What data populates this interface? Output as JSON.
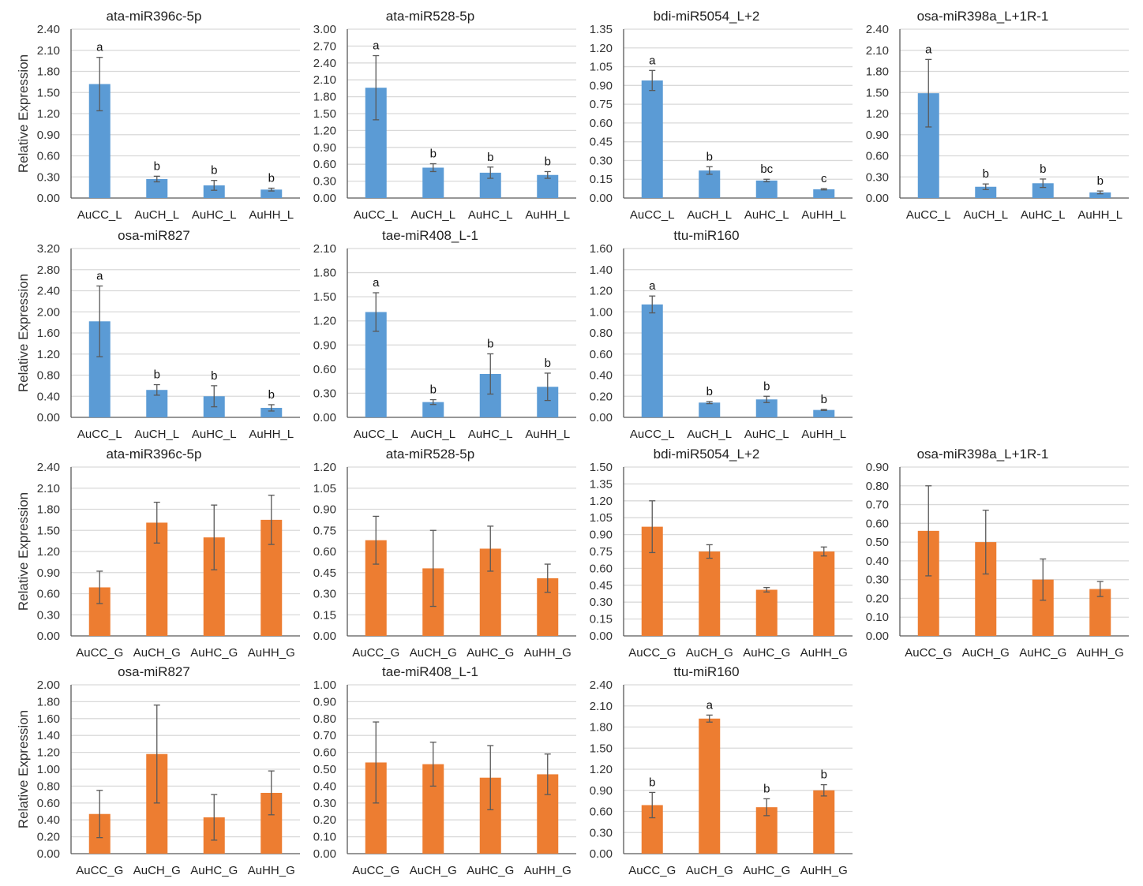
{
  "colors": {
    "leaf": "#5B9BD5",
    "grain": "#ED7D31",
    "grid": "#D9D9D9",
    "axis": "#595959",
    "error": "#595959"
  },
  "chart_data": [
    {
      "type": "bar",
      "title": "ata-miR396c-5p",
      "ylabel": "Relative Expression",
      "categories": [
        "AuCC_L",
        "AuCH_L",
        "AuHC_L",
        "AuHH_L"
      ],
      "values": [
        1.62,
        0.27,
        0.18,
        0.12
      ],
      "errors": [
        0.38,
        0.04,
        0.07,
        0.02
      ],
      "letters": [
        "a",
        "b",
        "b",
        "b"
      ],
      "ylim": [
        0,
        2.4
      ],
      "ystep": 0.3,
      "yticks": [
        "0.00",
        "0.30",
        "0.60",
        "0.90",
        "1.20",
        "1.50",
        "1.80",
        "2.10",
        "2.40"
      ],
      "series_color": "leaf",
      "grid": true
    },
    {
      "type": "bar",
      "title": "ata-miR528-5p",
      "ylabel": "",
      "categories": [
        "AuCC_L",
        "AuCH_L",
        "AuHC_L",
        "AuHH_L"
      ],
      "values": [
        1.96,
        0.54,
        0.45,
        0.41
      ],
      "errors": [
        0.57,
        0.07,
        0.1,
        0.06
      ],
      "letters": [
        "a",
        "b",
        "b",
        "b"
      ],
      "ylim": [
        0,
        3.0
      ],
      "ystep": 0.3,
      "yticks": [
        "0.00",
        "0.30",
        "0.60",
        "0.90",
        "1.20",
        "1.50",
        "1.80",
        "2.10",
        "2.40",
        "2.70",
        "3.00"
      ],
      "series_color": "leaf",
      "grid": true
    },
    {
      "type": "bar",
      "title": "bdi-miR5054_L+2",
      "ylabel": "",
      "categories": [
        "AuCC_L",
        "AuCH_L",
        "AuHC_L",
        "AuHH_L"
      ],
      "values": [
        0.94,
        0.22,
        0.14,
        0.07
      ],
      "errors": [
        0.08,
        0.03,
        0.01,
        0.005
      ],
      "letters": [
        "a",
        "b",
        "bc",
        "c"
      ],
      "ylim": [
        0,
        1.35
      ],
      "ystep": 0.15,
      "yticks": [
        "0.00",
        "0.15",
        "0.30",
        "0.45",
        "0.60",
        "0.75",
        "0.90",
        "1.05",
        "1.20",
        "1.35"
      ],
      "series_color": "leaf",
      "grid": true
    },
    {
      "type": "bar",
      "title": "osa-miR398a_L+1R-1",
      "ylabel": "",
      "categories": [
        "AuCC_L",
        "AuCH_L",
        "AuHC_L",
        "AuHH_L"
      ],
      "values": [
        1.49,
        0.16,
        0.21,
        0.08
      ],
      "errors": [
        0.48,
        0.04,
        0.06,
        0.02
      ],
      "letters": [
        "a",
        "b",
        "b",
        "b"
      ],
      "ylim": [
        0,
        2.4
      ],
      "ystep": 0.3,
      "yticks": [
        "0.00",
        "0.30",
        "0.60",
        "0.90",
        "1.20",
        "1.50",
        "1.80",
        "2.10",
        "2.40"
      ],
      "series_color": "leaf",
      "grid": true
    },
    {
      "type": "bar",
      "title": "osa-miR827",
      "ylabel": "Relative Expression",
      "categories": [
        "AuCC_L",
        "AuCH_L",
        "AuHC_L",
        "AuHH_L"
      ],
      "values": [
        1.82,
        0.52,
        0.4,
        0.18
      ],
      "errors": [
        0.67,
        0.1,
        0.2,
        0.06
      ],
      "letters": [
        "a",
        "b",
        "b",
        "b"
      ],
      "ylim": [
        0,
        3.2
      ],
      "ystep": 0.4,
      "yticks": [
        "0.00",
        "0.40",
        "0.80",
        "1.20",
        "1.60",
        "2.00",
        "2.40",
        "2.80",
        "3.20"
      ],
      "series_color": "leaf",
      "grid": true
    },
    {
      "type": "bar",
      "title": "tae-miR408_L-1",
      "ylabel": "",
      "categories": [
        "AuCC_L",
        "AuCH_L",
        "AuHC_L",
        "AuHH_L"
      ],
      "values": [
        1.31,
        0.19,
        0.54,
        0.38
      ],
      "errors": [
        0.24,
        0.03,
        0.25,
        0.17
      ],
      "letters": [
        "a",
        "b",
        "b",
        "b"
      ],
      "ylim": [
        0,
        2.1
      ],
      "ystep": 0.3,
      "yticks": [
        "0.00",
        "0.30",
        "0.60",
        "0.90",
        "1.20",
        "1.50",
        "1.80",
        "2.10"
      ],
      "series_color": "leaf",
      "grid": true
    },
    {
      "type": "bar",
      "title": "ttu-miR160",
      "ylabel": "",
      "categories": [
        "AuCC_L",
        "AuCH_L",
        "AuHC_L",
        "AuHH_L"
      ],
      "values": [
        1.07,
        0.14,
        0.17,
        0.07
      ],
      "errors": [
        0.08,
        0.01,
        0.03,
        0.005
      ],
      "letters": [
        "a",
        "b",
        "b",
        "b"
      ],
      "ylim": [
        0,
        1.6
      ],
      "ystep": 0.2,
      "yticks": [
        "0.00",
        "0.20",
        "0.40",
        "0.60",
        "0.80",
        "1.00",
        "1.20",
        "1.40",
        "1.60"
      ],
      "series_color": "leaf",
      "grid": true
    },
    {
      "type": "bar",
      "title": "ata-miR396c-5p",
      "ylabel": "Relative Expression",
      "categories": [
        "AuCC_G",
        "AuCH_G",
        "AuHC_G",
        "AuHH_G"
      ],
      "values": [
        0.69,
        1.61,
        1.4,
        1.65
      ],
      "errors": [
        0.23,
        0.29,
        0.46,
        0.35
      ],
      "letters": [
        "",
        "",
        "",
        ""
      ],
      "ylim": [
        0,
        2.4
      ],
      "ystep": 0.3,
      "yticks": [
        "0.00",
        "0.30",
        "0.60",
        "0.90",
        "1.20",
        "1.50",
        "1.80",
        "2.10",
        "2.40"
      ],
      "series_color": "grain",
      "grid": true
    },
    {
      "type": "bar",
      "title": "ata-miR528-5p",
      "ylabel": "",
      "categories": [
        "AuCC_G",
        "AuCH_G",
        "AuHC_G",
        "AuHH_G"
      ],
      "values": [
        0.68,
        0.48,
        0.62,
        0.41
      ],
      "errors": [
        0.17,
        0.27,
        0.16,
        0.1
      ],
      "letters": [
        "",
        "",
        "",
        ""
      ],
      "ylim": [
        0,
        1.2
      ],
      "ystep": 0.15,
      "yticks": [
        "0.00",
        "0.15",
        "0.30",
        "0.45",
        "0.60",
        "0.75",
        "0.90",
        "1.05",
        "1.20"
      ],
      "series_color": "grain",
      "grid": true
    },
    {
      "type": "bar",
      "title": "bdi-miR5054_L+2",
      "ylabel": "",
      "categories": [
        "AuCC_G",
        "AuCH_G",
        "AuHC_G",
        "AuHH_G"
      ],
      "values": [
        0.97,
        0.75,
        0.41,
        0.75
      ],
      "errors": [
        0.23,
        0.06,
        0.02,
        0.04
      ],
      "letters": [
        "",
        "",
        "",
        ""
      ],
      "ylim": [
        0,
        1.5
      ],
      "ystep": 0.15,
      "yticks": [
        "0.00",
        "0.15",
        "0.30",
        "0.45",
        "0.60",
        "0.75",
        "0.90",
        "1.05",
        "1.20",
        "1.35",
        "1.50"
      ],
      "series_color": "grain",
      "grid": true
    },
    {
      "type": "bar",
      "title": "osa-miR398a_L+1R-1",
      "ylabel": "",
      "categories": [
        "AuCC_G",
        "AuCH_G",
        "AuHC_G",
        "AuHH_G"
      ],
      "values": [
        0.56,
        0.5,
        0.3,
        0.25
      ],
      "errors": [
        0.24,
        0.17,
        0.11,
        0.04
      ],
      "letters": [
        "",
        "",
        "",
        ""
      ],
      "ylim": [
        0,
        0.9
      ],
      "ystep": 0.1,
      "yticks": [
        "0.00",
        "0.10",
        "0.20",
        "0.30",
        "0.40",
        "0.50",
        "0.60",
        "0.70",
        "0.80",
        "0.90"
      ],
      "series_color": "grain",
      "grid": true
    },
    {
      "type": "bar",
      "title": "osa-miR827",
      "ylabel": "Relative Expression",
      "categories": [
        "AuCC_G",
        "AuCH_G",
        "AuHC_G",
        "AuHH_G"
      ],
      "values": [
        0.47,
        1.18,
        0.43,
        0.72
      ],
      "errors": [
        0.28,
        0.58,
        0.27,
        0.26
      ],
      "letters": [
        "",
        "",
        "",
        ""
      ],
      "ylim": [
        0,
        2.0
      ],
      "ystep": 0.2,
      "yticks": [
        "0.00",
        "0.20",
        "0.40",
        "0.60",
        "0.80",
        "1.00",
        "1.20",
        "1.40",
        "1.60",
        "1.80",
        "2.00"
      ],
      "series_color": "grain",
      "grid": true
    },
    {
      "type": "bar",
      "title": "tae-miR408_L-1",
      "ylabel": "",
      "categories": [
        "AuCC_G",
        "AuCH_G",
        "AuHC_G",
        "AuHH_G"
      ],
      "values": [
        0.54,
        0.53,
        0.45,
        0.47
      ],
      "errors": [
        0.24,
        0.13,
        0.19,
        0.12
      ],
      "letters": [
        "",
        "",
        "",
        ""
      ],
      "ylim": [
        0,
        1.0
      ],
      "ystep": 0.1,
      "yticks": [
        "0.00",
        "0.10",
        "0.20",
        "0.30",
        "0.40",
        "0.50",
        "0.60",
        "0.70",
        "0.80",
        "0.90",
        "1.00"
      ],
      "series_color": "grain",
      "grid": true
    },
    {
      "type": "bar",
      "title": "ttu-miR160",
      "ylabel": "",
      "categories": [
        "AuCC_G",
        "AuCH_G",
        "AuHC_G",
        "AuHH_G"
      ],
      "values": [
        0.69,
        1.92,
        0.66,
        0.9
      ],
      "errors": [
        0.18,
        0.05,
        0.12,
        0.08
      ],
      "letters": [
        "b",
        "a",
        "b",
        "b"
      ],
      "ylim": [
        0,
        2.4
      ],
      "ystep": 0.3,
      "yticks": [
        "0.00",
        "0.30",
        "0.60",
        "0.90",
        "1.20",
        "1.50",
        "1.80",
        "2.10",
        "2.40"
      ],
      "series_color": "grain",
      "grid": true
    }
  ]
}
